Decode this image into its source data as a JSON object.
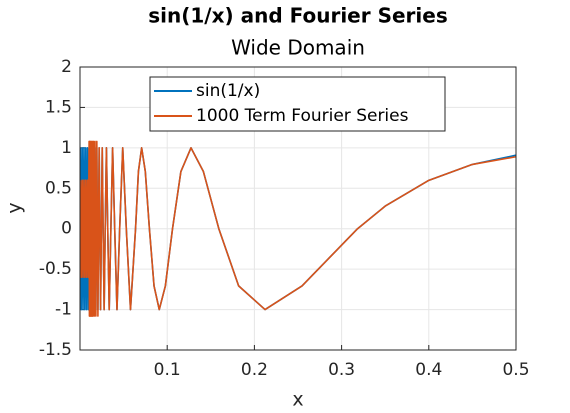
{
  "chart_data": {
    "type": "line",
    "title": "sin(1/x) and Fourier Series",
    "subtitle": "Wide Domain",
    "x_label": "x",
    "y_label": "y",
    "xlim": [
      0,
      0.5
    ],
    "xticks": [
      0.1,
      0.2,
      0.3,
      0.4,
      0.5
    ],
    "ylim": [
      -1.5,
      2
    ],
    "yticks": [
      -1.5,
      -1,
      -0.5,
      0,
      0.5,
      1,
      1.5,
      2
    ],
    "grid": true,
    "legend_location": "north",
    "x": [
      0.0005,
      0.0015,
      0.0025,
      0.0035,
      0.0045,
      0.0055,
      0.0065,
      0.0075,
      0.0085,
      0.0095,
      0.01044,
      0.01079,
      0.01117,
      0.01157,
      0.01201,
      0.01248,
      0.01299,
      0.01355,
      0.01415,
      0.01481,
      0.01553,
      0.01632,
      0.01721,
      0.01819,
      0.01929,
      0.02054,
      0.0212,
      0.022,
      0.0227,
      0.0236,
      0.0245,
      0.0255,
      0.0265,
      0.0277,
      0.0289,
      0.0303,
      0.0318,
      0.0335,
      0.0354,
      0.0374,
      0.0398,
      0.0424,
      0.0455,
      0.049,
      0.0531,
      0.0579,
      0.0637,
      0.067,
      0.0707,
      0.0749,
      0.0796,
      0.0849,
      0.0909,
      0.0979,
      0.1061,
      0.1157,
      0.1273,
      0.1415,
      0.1592,
      0.1819,
      0.2122,
      0.2546,
      0.3183,
      0.35,
      0.4,
      0.45,
      0.5
    ],
    "series": [
      {
        "name": "sin(1/x)",
        "color": "#0072bd",
        "values": [
          1,
          -1,
          1,
          -1,
          1,
          -1,
          1,
          -1,
          1,
          -1,
          1,
          -1,
          1,
          -1,
          1,
          -1,
          1,
          -1,
          1,
          -1,
          1,
          -1,
          1,
          -1,
          1,
          -1,
          0,
          1,
          0,
          -1,
          0,
          1,
          0,
          -1,
          0,
          1,
          0,
          -1,
          0,
          1,
          0,
          -1,
          0,
          1,
          0,
          -1,
          0,
          0.7071,
          1,
          0.7071,
          0,
          -0.7071,
          -1,
          -0.7071,
          0,
          0.7071,
          1,
          0.7071,
          0,
          -0.7071,
          -1,
          -0.7071,
          0,
          0.2795,
          0.5985,
          0.795,
          0.9093
        ]
      },
      {
        "name": "1000 Term Fourier Series",
        "color": "#d95319",
        "values": [
          0.6,
          -0.6,
          0.6,
          -0.6,
          0.6,
          -0.6,
          0.6,
          -0.6,
          0.6,
          -0.6,
          1.08,
          -1.08,
          1.08,
          -1.08,
          1.08,
          -1.08,
          1.08,
          -1.08,
          1.08,
          -1.08,
          1.08,
          -1.08,
          1.08,
          -1.08,
          1.08,
          -1.08,
          0,
          1,
          0,
          -1,
          0,
          1,
          0,
          -1,
          0,
          1,
          0,
          -1,
          0,
          1,
          0,
          -1,
          0,
          1,
          0,
          -1,
          0,
          0.7071,
          1,
          0.7071,
          0,
          -0.7071,
          -1,
          -0.7071,
          0,
          0.7071,
          1,
          0.7071,
          0,
          -0.7071,
          -1,
          -0.7071,
          0,
          0.2795,
          0.5985,
          0.795,
          0.89
        ]
      }
    ]
  }
}
